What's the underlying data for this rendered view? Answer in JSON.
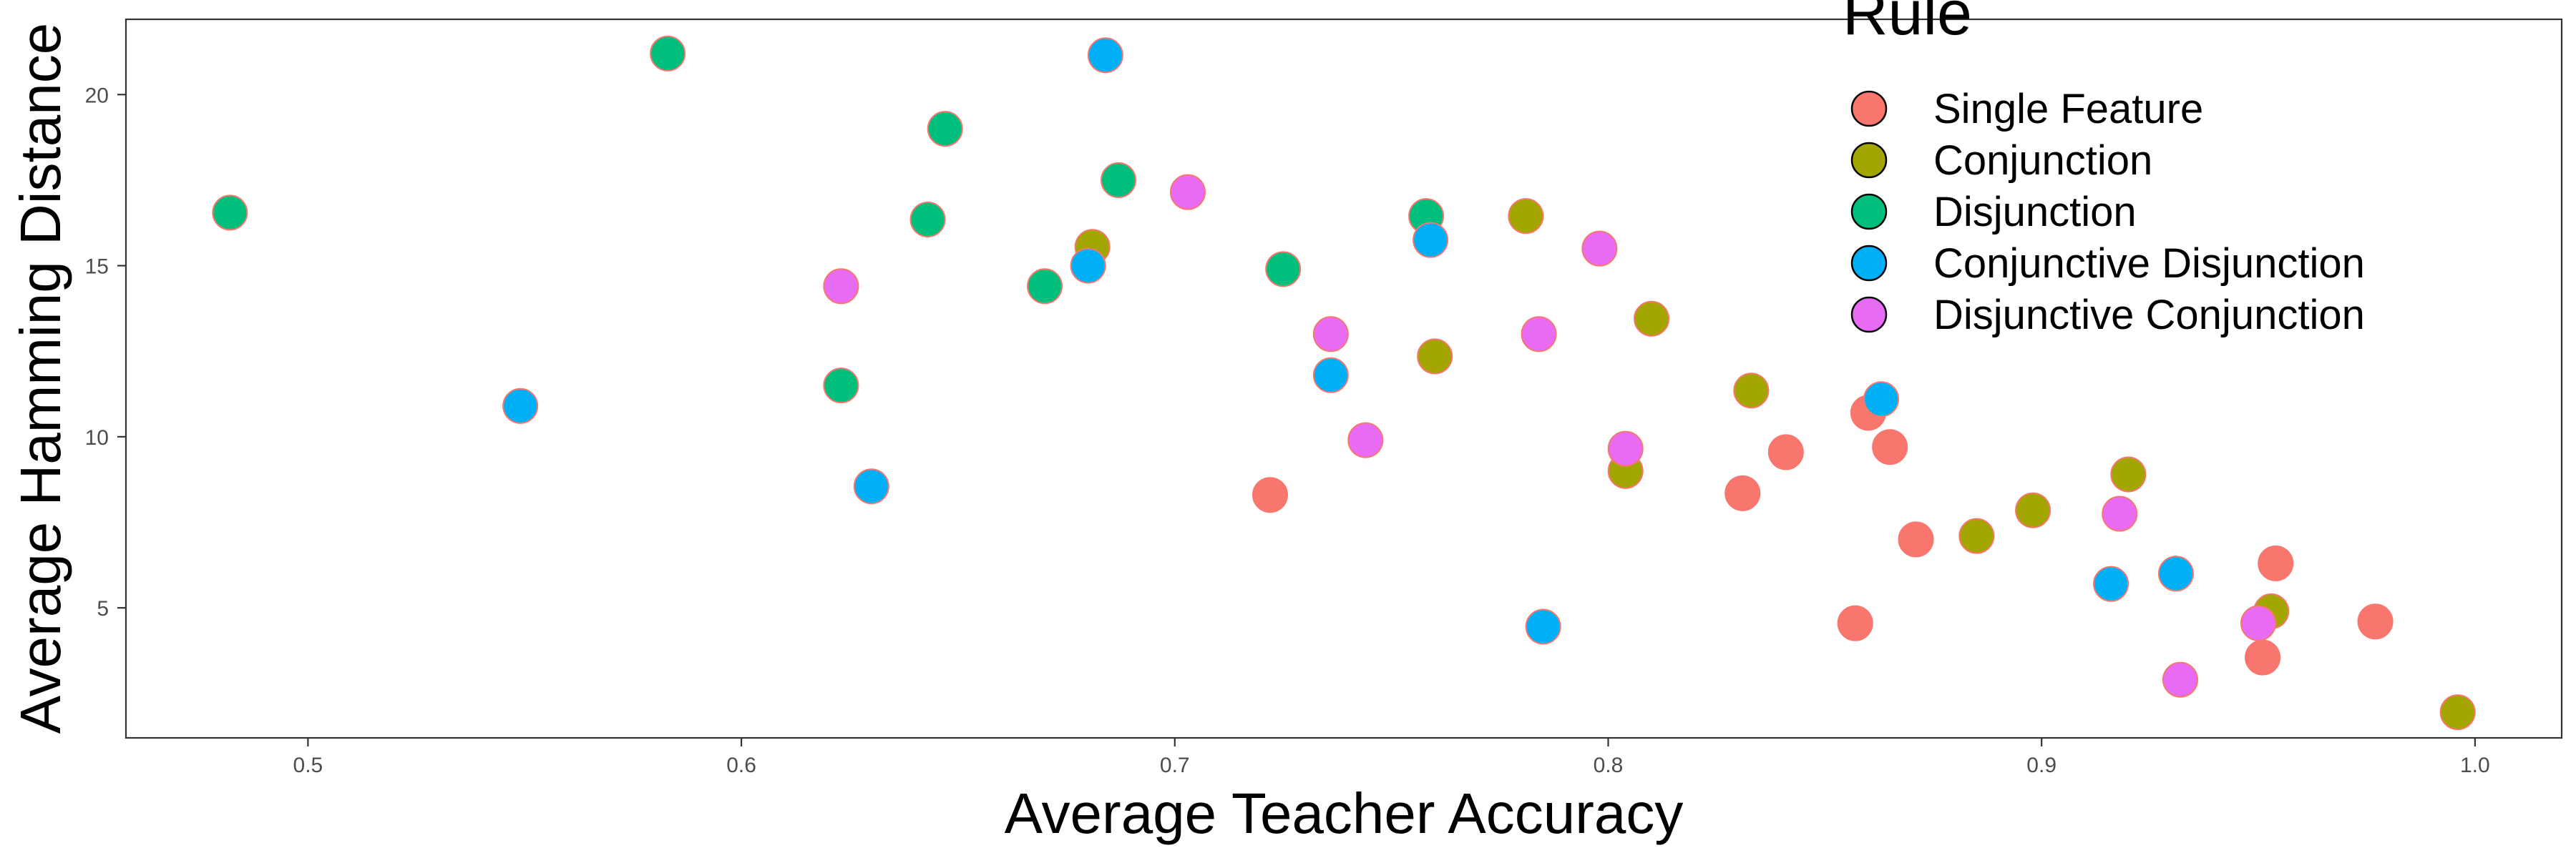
{
  "chart_data": {
    "type": "scatter",
    "xlabel": "Average Teacher Accuracy",
    "ylabel": "Average Hamming Distance",
    "xlim": [
      0.458,
      1.02
    ],
    "ylim": [
      1.2,
      22.2
    ],
    "x_ticks": [
      0.5,
      0.6,
      0.7,
      0.8,
      0.9,
      1.0
    ],
    "x_tick_labels": [
      "0.5",
      "0.6",
      "0.7",
      "0.8",
      "0.9",
      "1.0"
    ],
    "y_ticks": [
      5,
      10,
      15,
      20
    ],
    "y_tick_labels": [
      "5",
      "10",
      "15",
      "20"
    ],
    "grid": false,
    "legend": {
      "title": "Rule",
      "placement": "top-right"
    },
    "series": [
      {
        "name": "Single Feature",
        "color": "#F8766D",
        "points": [
          [
            0.722,
            8.3
          ],
          [
            0.831,
            8.35
          ],
          [
            0.841,
            9.55
          ],
          [
            0.857,
            4.55
          ],
          [
            0.86,
            10.7
          ],
          [
            0.865,
            9.7
          ],
          [
            0.871,
            7.0
          ],
          [
            0.951,
            3.55
          ],
          [
            0.954,
            6.3
          ],
          [
            0.977,
            4.6
          ]
        ]
      },
      {
        "name": "Conjunction",
        "color": "#A3A500",
        "points": [
          [
            0.681,
            15.55
          ],
          [
            0.76,
            12.35
          ],
          [
            0.781,
            16.45
          ],
          [
            0.804,
            9.0
          ],
          [
            0.81,
            13.45
          ],
          [
            0.833,
            11.35
          ],
          [
            0.885,
            7.1
          ],
          [
            0.898,
            7.85
          ],
          [
            0.92,
            8.9
          ],
          [
            0.953,
            4.9
          ],
          [
            0.996,
            1.95
          ]
        ]
      },
      {
        "name": "Disjunction",
        "color": "#00BF7D",
        "points": [
          [
            0.482,
            16.55
          ],
          [
            0.583,
            21.2
          ],
          [
            0.623,
            11.5
          ],
          [
            0.643,
            16.35
          ],
          [
            0.647,
            19.0
          ],
          [
            0.67,
            14.4
          ],
          [
            0.687,
            17.5
          ],
          [
            0.725,
            14.9
          ],
          [
            0.758,
            16.45
          ]
        ]
      },
      {
        "name": "Conjunctive Disjunction",
        "color": "#00B0F6",
        "points": [
          [
            0.549,
            10.9
          ],
          [
            0.63,
            8.55
          ],
          [
            0.68,
            15.0
          ],
          [
            0.684,
            21.15
          ],
          [
            0.736,
            11.8
          ],
          [
            0.759,
            15.75
          ],
          [
            0.785,
            4.45
          ],
          [
            0.863,
            11.1
          ],
          [
            0.916,
            5.7
          ],
          [
            0.931,
            6.0
          ]
        ]
      },
      {
        "name": "Disjunctive Conjunction",
        "color": "#E76BF3",
        "points": [
          [
            0.623,
            14.4
          ],
          [
            0.703,
            17.15
          ],
          [
            0.736,
            13.0
          ],
          [
            0.744,
            9.9
          ],
          [
            0.784,
            13.0
          ],
          [
            0.798,
            15.5
          ],
          [
            0.804,
            9.65
          ],
          [
            0.918,
            7.75
          ],
          [
            0.932,
            2.9
          ],
          [
            0.95,
            4.55
          ]
        ]
      }
    ]
  }
}
